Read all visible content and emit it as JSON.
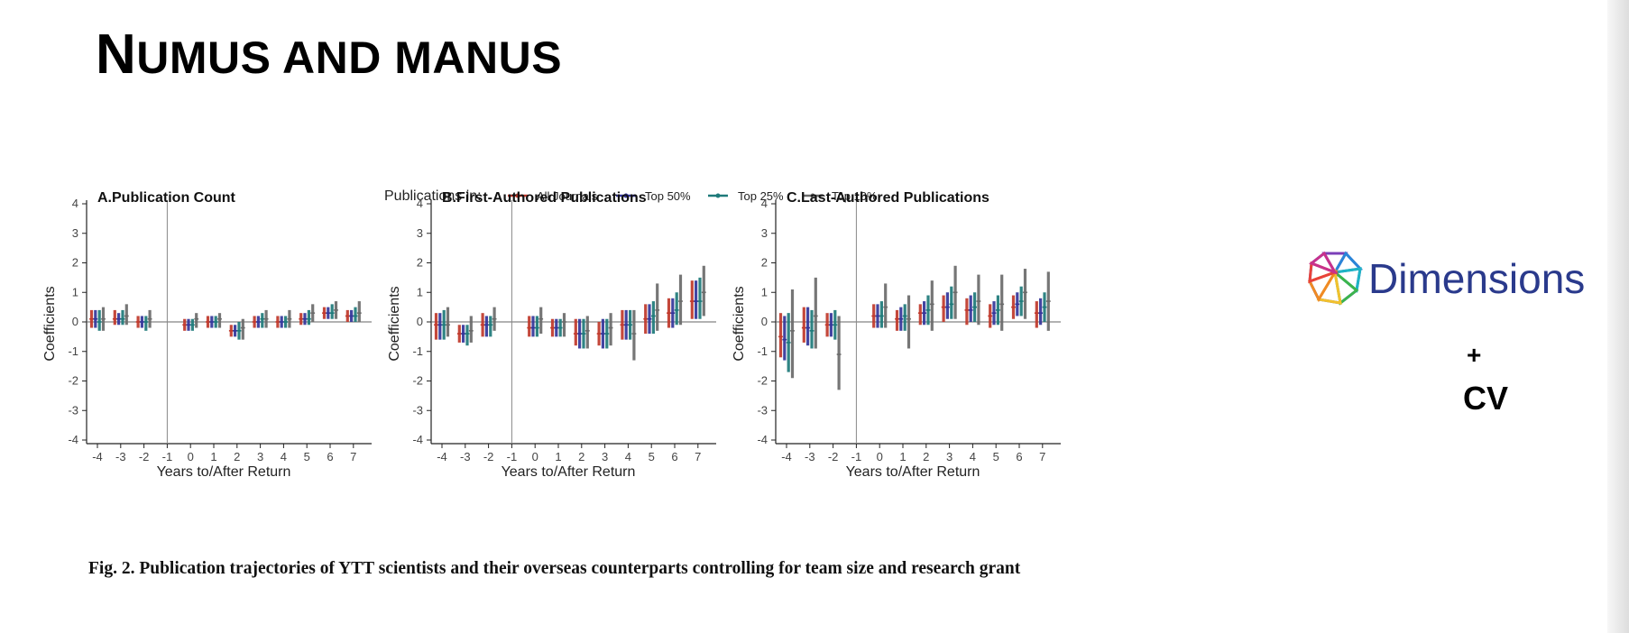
{
  "slide": {
    "title_first": "N",
    "title_rest": "UMUS AND MANUS",
    "caption": "Fig. 2. Publication trajectories of YTT scientists and their overseas counterparts controlling for team size and research grant",
    "logo_text": "Dimensions",
    "plus": "+",
    "cv": "CV"
  },
  "colors": {
    "all_journals": "#c0392b",
    "top50": "#34359a",
    "top25": "#1e7a7a",
    "top10": "#6b6b6b"
  },
  "chart_data": [
    {
      "type": "errorbar",
      "title": "A.Publication Count",
      "xlabel": "Years to/After Return",
      "ylabel": "Coefficients",
      "ylim": [
        -4,
        4
      ],
      "x": [
        -4,
        -3,
        -2,
        0,
        1,
        2,
        3,
        4,
        5,
        6,
        7
      ],
      "x_ticks": [
        "-4",
        "-3",
        "-2",
        "-1",
        "0",
        "1",
        "2",
        "3",
        "4",
        "5",
        "6",
        "7"
      ],
      "y_ticks": [
        "4",
        "3",
        "2",
        "1",
        "0",
        "-1",
        "-2",
        "-3",
        "-4"
      ],
      "reference_line_x": -1,
      "legend_title": "Publications in:",
      "series": [
        {
          "name": "All Journals",
          "mid": [
            0.1,
            0.1,
            0.0,
            -0.1,
            0.0,
            -0.3,
            0.0,
            0.0,
            0.1,
            0.3,
            0.2
          ],
          "low": [
            -0.2,
            -0.1,
            -0.2,
            -0.3,
            -0.2,
            -0.5,
            -0.2,
            -0.2,
            -0.1,
            0.1,
            0.0
          ],
          "high": [
            0.4,
            0.4,
            0.2,
            0.1,
            0.2,
            -0.1,
            0.2,
            0.2,
            0.3,
            0.5,
            0.4
          ]
        },
        {
          "name": "Top 50%",
          "mid": [
            0.1,
            0.1,
            0.0,
            -0.1,
            0.0,
            -0.3,
            0.0,
            0.0,
            0.1,
            0.3,
            0.2
          ],
          "low": [
            -0.2,
            -0.1,
            -0.2,
            -0.3,
            -0.2,
            -0.5,
            -0.2,
            -0.2,
            -0.1,
            0.1,
            0.0
          ],
          "high": [
            0.4,
            0.3,
            0.2,
            0.1,
            0.2,
            -0.1,
            0.2,
            0.2,
            0.3,
            0.5,
            0.4
          ]
        },
        {
          "name": "Top 25%",
          "mid": [
            0.0,
            0.1,
            0.0,
            -0.1,
            0.0,
            -0.3,
            0.1,
            0.0,
            0.1,
            0.3,
            0.2
          ],
          "low": [
            -0.3,
            -0.1,
            -0.3,
            -0.3,
            -0.2,
            -0.6,
            -0.2,
            -0.2,
            -0.1,
            0.1,
            0.0
          ],
          "high": [
            0.4,
            0.4,
            0.2,
            0.1,
            0.2,
            0.0,
            0.3,
            0.2,
            0.4,
            0.6,
            0.5
          ]
        },
        {
          "name": "Top 10%",
          "mid": [
            0.1,
            0.2,
            0.1,
            0.1,
            0.1,
            -0.2,
            0.1,
            0.1,
            0.3,
            0.4,
            0.3
          ],
          "low": [
            -0.3,
            -0.1,
            -0.2,
            -0.2,
            -0.2,
            -0.6,
            -0.2,
            -0.2,
            0.0,
            0.1,
            0.0
          ],
          "high": [
            0.5,
            0.6,
            0.4,
            0.3,
            0.3,
            0.1,
            0.4,
            0.4,
            0.6,
            0.7,
            0.7
          ]
        }
      ]
    },
    {
      "type": "errorbar",
      "title": "B.First-Authored Publications",
      "xlabel": "Years to/After Return",
      "ylabel": "Coefficients",
      "ylim": [
        -4,
        4
      ],
      "x": [
        -4,
        -3,
        -2,
        0,
        1,
        2,
        3,
        4,
        5,
        6,
        7
      ],
      "x_ticks": [
        "-4",
        "-3",
        "-2",
        "-1",
        "0",
        "1",
        "2",
        "3",
        "4",
        "5",
        "6",
        "7"
      ],
      "y_ticks": [
        "4",
        "3",
        "2",
        "1",
        "0",
        "-1",
        "-2",
        "-3",
        "-4"
      ],
      "reference_line_x": -1,
      "series": [
        {
          "name": "All Journals",
          "mid": [
            -0.1,
            -0.4,
            -0.1,
            -0.2,
            -0.2,
            -0.4,
            -0.4,
            -0.1,
            0.1,
            0.3,
            0.7
          ],
          "low": [
            -0.6,
            -0.7,
            -0.5,
            -0.5,
            -0.5,
            -0.8,
            -0.8,
            -0.6,
            -0.4,
            -0.2,
            0.1
          ],
          "high": [
            0.3,
            -0.1,
            0.3,
            0.2,
            0.1,
            0.1,
            0.0,
            0.4,
            0.6,
            0.8,
            1.4
          ]
        },
        {
          "name": "Top 50%",
          "mid": [
            -0.1,
            -0.4,
            -0.1,
            -0.2,
            -0.2,
            -0.4,
            -0.4,
            -0.1,
            0.1,
            0.3,
            0.7
          ],
          "low": [
            -0.6,
            -0.7,
            -0.5,
            -0.5,
            -0.5,
            -0.9,
            -0.9,
            -0.6,
            -0.4,
            -0.2,
            0.1
          ],
          "high": [
            0.3,
            -0.1,
            0.2,
            0.2,
            0.1,
            0.1,
            0.1,
            0.4,
            0.6,
            0.8,
            1.4
          ]
        },
        {
          "name": "Top 25%",
          "mid": [
            -0.1,
            -0.4,
            -0.1,
            -0.2,
            -0.2,
            -0.4,
            -0.4,
            -0.1,
            0.2,
            0.4,
            0.7
          ],
          "low": [
            -0.6,
            -0.8,
            -0.5,
            -0.5,
            -0.5,
            -0.9,
            -0.9,
            -0.6,
            -0.4,
            -0.1,
            0.1
          ],
          "high": [
            0.4,
            -0.1,
            0.2,
            0.2,
            0.1,
            0.1,
            0.1,
            0.4,
            0.7,
            1.0,
            1.5
          ]
        },
        {
          "name": "Top 10%",
          "mid": [
            -0.1,
            -0.3,
            0.1,
            0.1,
            0.0,
            -0.3,
            -0.2,
            -0.4,
            0.4,
            0.7,
            1.0
          ],
          "low": [
            -0.5,
            -0.7,
            -0.3,
            -0.4,
            -0.5,
            -0.9,
            -0.8,
            -1.3,
            -0.3,
            -0.1,
            0.2
          ],
          "high": [
            0.5,
            0.2,
            0.5,
            0.5,
            0.3,
            0.2,
            0.3,
            0.4,
            1.3,
            1.6,
            1.9
          ]
        }
      ]
    },
    {
      "type": "errorbar",
      "title": "C.Last-Authored Publications",
      "xlabel": "Years to/After Return",
      "ylabel": "Coefficients",
      "ylim": [
        -4,
        4
      ],
      "x": [
        -4,
        -3,
        -2,
        0,
        1,
        2,
        3,
        4,
        5,
        6,
        7
      ],
      "x_ticks": [
        "-4",
        "-3",
        "-2",
        "-1",
        "0",
        "1",
        "2",
        "3",
        "4",
        "5",
        "6",
        "7"
      ],
      "y_ticks": [
        "4",
        "3",
        "2",
        "1",
        "0",
        "-1",
        "-2",
        "-3",
        "-4"
      ],
      "reference_line_x": -1,
      "series": [
        {
          "name": "All Journals",
          "mid": [
            -0.5,
            -0.2,
            -0.1,
            0.2,
            0.1,
            0.3,
            0.5,
            0.4,
            0.2,
            0.5,
            0.3
          ],
          "low": [
            -1.2,
            -0.7,
            -0.5,
            -0.2,
            -0.3,
            -0.1,
            0.0,
            -0.1,
            -0.2,
            0.1,
            -0.2
          ],
          "high": [
            0.3,
            0.5,
            0.3,
            0.6,
            0.4,
            0.6,
            0.9,
            0.8,
            0.6,
            0.9,
            0.7
          ]
        },
        {
          "name": "Top 50%",
          "mid": [
            -0.6,
            -0.2,
            -0.1,
            0.2,
            0.1,
            0.3,
            0.5,
            0.4,
            0.3,
            0.6,
            0.3
          ],
          "low": [
            -1.3,
            -0.8,
            -0.5,
            -0.2,
            -0.3,
            -0.1,
            0.1,
            0.0,
            -0.1,
            0.2,
            -0.1
          ],
          "high": [
            0.2,
            0.5,
            0.3,
            0.6,
            0.5,
            0.7,
            1.0,
            0.9,
            0.7,
            1.0,
            0.8
          ]
        },
        {
          "name": "Top 25%",
          "mid": [
            -0.7,
            -0.3,
            -0.1,
            0.2,
            0.2,
            0.4,
            0.6,
            0.5,
            0.4,
            0.7,
            0.5
          ],
          "low": [
            -1.7,
            -0.9,
            -0.6,
            -0.2,
            -0.3,
            -0.1,
            0.1,
            0.0,
            -0.1,
            0.2,
            0.0
          ],
          "high": [
            0.3,
            0.4,
            0.4,
            0.7,
            0.6,
            0.9,
            1.2,
            1.0,
            0.9,
            1.2,
            1.0
          ]
        },
        {
          "name": "Top 10%",
          "mid": [
            -0.3,
            0.2,
            -1.1,
            0.5,
            0.1,
            0.6,
            1.0,
            0.7,
            0.6,
            1.0,
            0.7
          ],
          "low": [
            -1.9,
            -0.9,
            -2.3,
            -0.2,
            -0.9,
            -0.3,
            0.1,
            -0.1,
            -0.3,
            0.1,
            -0.3
          ],
          "high": [
            1.1,
            1.5,
            0.2,
            1.3,
            0.9,
            1.4,
            1.9,
            1.6,
            1.6,
            1.8,
            1.7
          ]
        }
      ]
    }
  ]
}
